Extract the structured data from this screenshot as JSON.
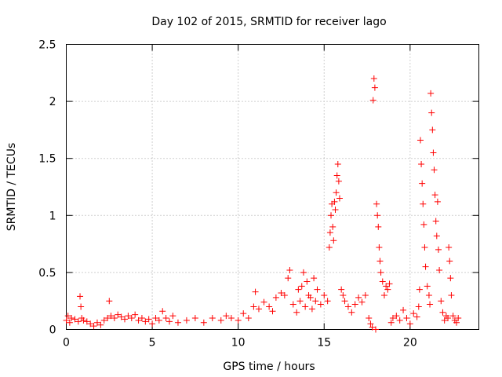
{
  "chart_data": {
    "type": "scatter",
    "title": "Day 102 of 2015, SRMTID for receiver lago",
    "xlabel": "GPS time / hours",
    "ylabel": "SRMTID / TECUs",
    "xlim": [
      0,
      24
    ],
    "ylim": [
      0,
      2.5
    ],
    "x_ticks": [
      0,
      5,
      10,
      15,
      20
    ],
    "x_tick_labels": [
      "0",
      "5",
      "10",
      "15",
      "20"
    ],
    "y_ticks": [
      0,
      0.5,
      1,
      1.5,
      2,
      2.5
    ],
    "y_tick_labels": [
      "0",
      "0.5",
      "1",
      "1.5",
      "2",
      "2.5"
    ],
    "grid": true,
    "marker": "+",
    "series_color": "#ff0000",
    "x": [
      0.0,
      0.1,
      0.2,
      0.3,
      0.5,
      0.7,
      0.8,
      0.85,
      0.9,
      1.0,
      1.2,
      1.4,
      1.6,
      1.8,
      2.0,
      2.2,
      2.4,
      2.5,
      2.6,
      2.8,
      3.0,
      3.2,
      3.4,
      3.6,
      3.8,
      4.0,
      4.2,
      4.4,
      4.6,
      4.8,
      5.0,
      5.2,
      5.4,
      5.6,
      5.8,
      6.0,
      6.2,
      6.5,
      7.0,
      7.5,
      8.0,
      8.5,
      9.0,
      9.3,
      9.6,
      10.0,
      10.3,
      10.6,
      10.9,
      11.0,
      11.2,
      11.5,
      11.8,
      12.0,
      12.2,
      12.5,
      12.7,
      12.9,
      13.0,
      13.2,
      13.4,
      13.5,
      13.6,
      13.7,
      13.8,
      13.9,
      14.0,
      14.1,
      14.2,
      14.3,
      14.4,
      14.5,
      14.6,
      14.8,
      15.0,
      15.2,
      15.3,
      15.35,
      15.4,
      15.45,
      15.5,
      15.55,
      15.6,
      15.65,
      15.7,
      15.75,
      15.8,
      15.85,
      15.9,
      16.0,
      16.1,
      16.2,
      16.4,
      16.6,
      16.8,
      17.0,
      17.2,
      17.4,
      17.6,
      17.7,
      17.8,
      17.85,
      17.9,
      17.95,
      18.0,
      18.05,
      18.1,
      18.15,
      18.2,
      18.25,
      18.3,
      18.4,
      18.5,
      18.6,
      18.7,
      18.8,
      18.9,
      19.0,
      19.2,
      19.4,
      19.6,
      19.8,
      20.0,
      20.2,
      20.4,
      20.5,
      20.55,
      20.6,
      20.65,
      20.7,
      20.75,
      20.8,
      20.85,
      20.9,
      21.0,
      21.1,
      21.15,
      21.2,
      21.25,
      21.3,
      21.35,
      21.4,
      21.45,
      21.5,
      21.55,
      21.6,
      21.65,
      21.7,
      21.8,
      21.9,
      22.0,
      22.1,
      22.2,
      22.25,
      22.3,
      22.35,
      22.4,
      22.5,
      22.6,
      22.7,
      22.8
    ],
    "y": [
      0.08,
      0.12,
      0.06,
      0.1,
      0.09,
      0.07,
      0.29,
      0.2,
      0.1,
      0.08,
      0.07,
      0.05,
      0.03,
      0.06,
      0.04,
      0.08,
      0.1,
      0.25,
      0.12,
      0.1,
      0.13,
      0.11,
      0.09,
      0.12,
      0.1,
      0.13,
      0.08,
      0.1,
      0.07,
      0.09,
      0.05,
      0.1,
      0.08,
      0.16,
      0.1,
      0.07,
      0.12,
      0.06,
      0.08,
      0.1,
      0.06,
      0.1,
      0.08,
      0.12,
      0.1,
      0.08,
      0.14,
      0.1,
      0.2,
      0.33,
      0.18,
      0.24,
      0.2,
      0.16,
      0.28,
      0.32,
      0.3,
      0.45,
      0.52,
      0.22,
      0.15,
      0.35,
      0.25,
      0.38,
      0.5,
      0.2,
      0.42,
      0.3,
      0.28,
      0.18,
      0.45,
      0.25,
      0.35,
      0.22,
      0.3,
      0.25,
      0.72,
      0.85,
      1.0,
      1.1,
      0.9,
      0.78,
      1.12,
      1.05,
      1.2,
      1.35,
      1.45,
      1.3,
      1.15,
      0.35,
      0.3,
      0.25,
      0.2,
      0.15,
      0.22,
      0.28,
      0.24,
      0.3,
      0.1,
      0.05,
      0.02,
      2.01,
      2.2,
      2.12,
      0.0,
      1.1,
      1.0,
      0.9,
      0.72,
      0.6,
      0.5,
      0.42,
      0.3,
      0.38,
      0.35,
      0.4,
      0.06,
      0.1,
      0.12,
      0.08,
      0.17,
      0.1,
      0.05,
      0.14,
      0.11,
      0.2,
      0.35,
      1.66,
      1.45,
      1.28,
      1.1,
      0.92,
      0.72,
      0.55,
      0.38,
      0.3,
      0.22,
      2.07,
      1.9,
      1.75,
      1.55,
      1.4,
      1.18,
      0.95,
      0.82,
      1.12,
      0.7,
      0.52,
      0.25,
      0.15,
      0.08,
      0.12,
      0.1,
      0.72,
      0.6,
      0.45,
      0.3,
      0.12,
      0.08,
      0.06,
      0.1
    ]
  }
}
